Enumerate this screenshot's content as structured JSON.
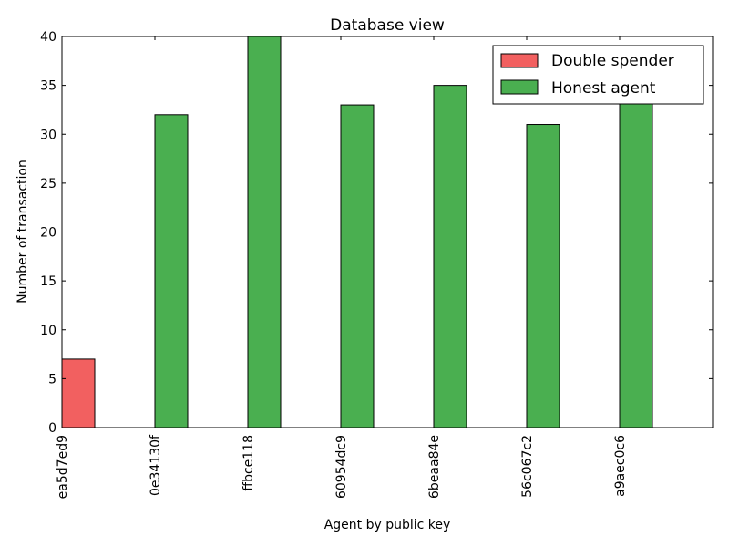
{
  "chart_data": {
    "type": "bar",
    "title": "Database view",
    "xlabel": "Agent by public key",
    "ylabel": "Number of transaction",
    "ylim": [
      0,
      40
    ],
    "yticks": [
      0,
      5,
      10,
      15,
      20,
      25,
      30,
      35,
      40
    ],
    "categories": [
      "ea5d7ed9",
      "0e34130f",
      "ffbce118",
      "60954dc9",
      "6beaa84e",
      "56c067c2",
      "a9aec0c6"
    ],
    "series": [
      {
        "name": "Double spender",
        "color": "#f26060",
        "values": [
          7,
          0,
          0,
          0,
          0,
          0,
          0
        ]
      },
      {
        "name": "Honest agent",
        "color": "#4aaf50",
        "values": [
          0,
          32,
          40,
          33,
          35,
          31,
          34
        ]
      }
    ],
    "legend": "top-right",
    "grid": false
  }
}
